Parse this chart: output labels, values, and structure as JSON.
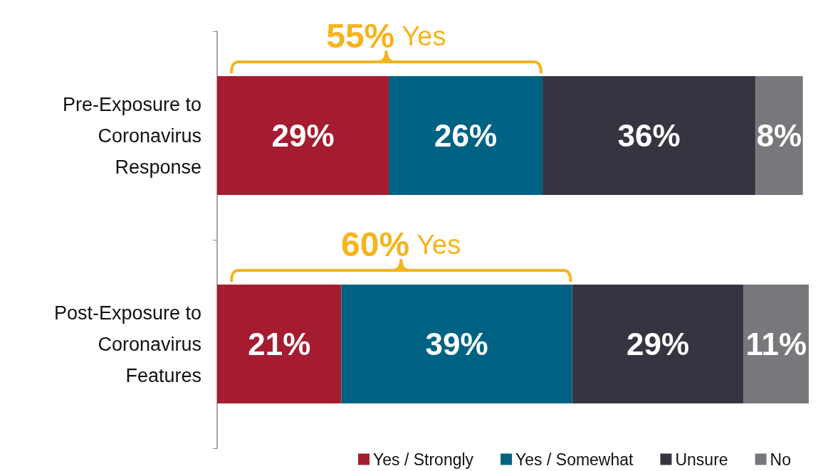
{
  "chart_data": {
    "type": "bar",
    "orientation": "horizontal",
    "stacked": true,
    "legend": "bottom",
    "grid": false,
    "categories": [
      "Pre-Exposure to\nCoronavirus\nResponse",
      "Post-Exposure to\nCoronavirus\nFeatures"
    ],
    "series": [
      {
        "name": "Yes / Strongly",
        "color": "#a51c30",
        "values": [
          29,
          21
        ],
        "value_labels": [
          "29%",
          "21%"
        ]
      },
      {
        "name": "Yes / Somewhat",
        "color": "#006283",
        "values": [
          26,
          39
        ],
        "value_labels": [
          "26%",
          "39%"
        ]
      },
      {
        "name": "Unsure",
        "color": "#343541",
        "values": [
          36,
          29
        ],
        "value_labels": [
          "36%",
          "29%"
        ]
      },
      {
        "name": "No",
        "color": "#77787b",
        "values": [
          8,
          11
        ],
        "value_labels": [
          "8%",
          "11%"
        ]
      }
    ],
    "annotations": [
      "55% Yes",
      "60% Yes"
    ]
  }
}
